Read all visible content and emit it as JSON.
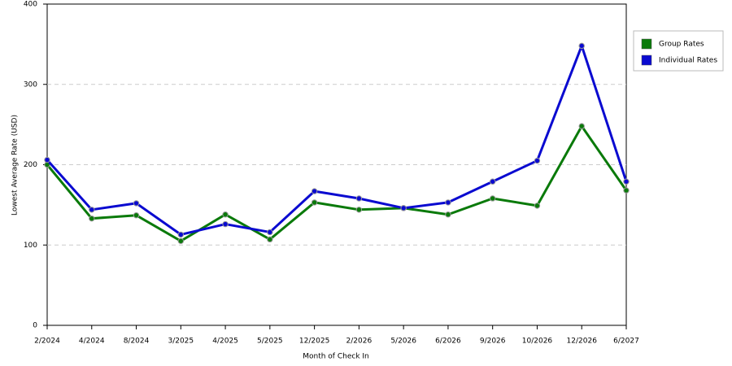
{
  "chart_data": {
    "type": "line",
    "x_label": "Month of Check In",
    "y_label": "Lowest Average Rate (USD)",
    "categories": [
      "2/2024",
      "4/2024",
      "8/2024",
      "3/2025",
      "4/2025",
      "5/2025",
      "12/2025",
      "2/2026",
      "5/2026",
      "6/2026",
      "9/2026",
      "10/2026",
      "12/2026",
      "6/2027"
    ],
    "series": [
      {
        "name": "Group Rates",
        "color": "#0a7a0a",
        "values": [
          200,
          133,
          137,
          105,
          138,
          107,
          153,
          144,
          146,
          138,
          158,
          149,
          248,
          168
        ]
      },
      {
        "name": "Individual Rates",
        "color": "#0a0ad0",
        "values": [
          206,
          144,
          152,
          113,
          126,
          116,
          167,
          158,
          146,
          153,
          179,
          205,
          348,
          179
        ]
      }
    ],
    "ylim": [
      0,
      400
    ],
    "yticks": [
      0,
      100,
      200,
      300,
      400
    ],
    "grid": true
  }
}
